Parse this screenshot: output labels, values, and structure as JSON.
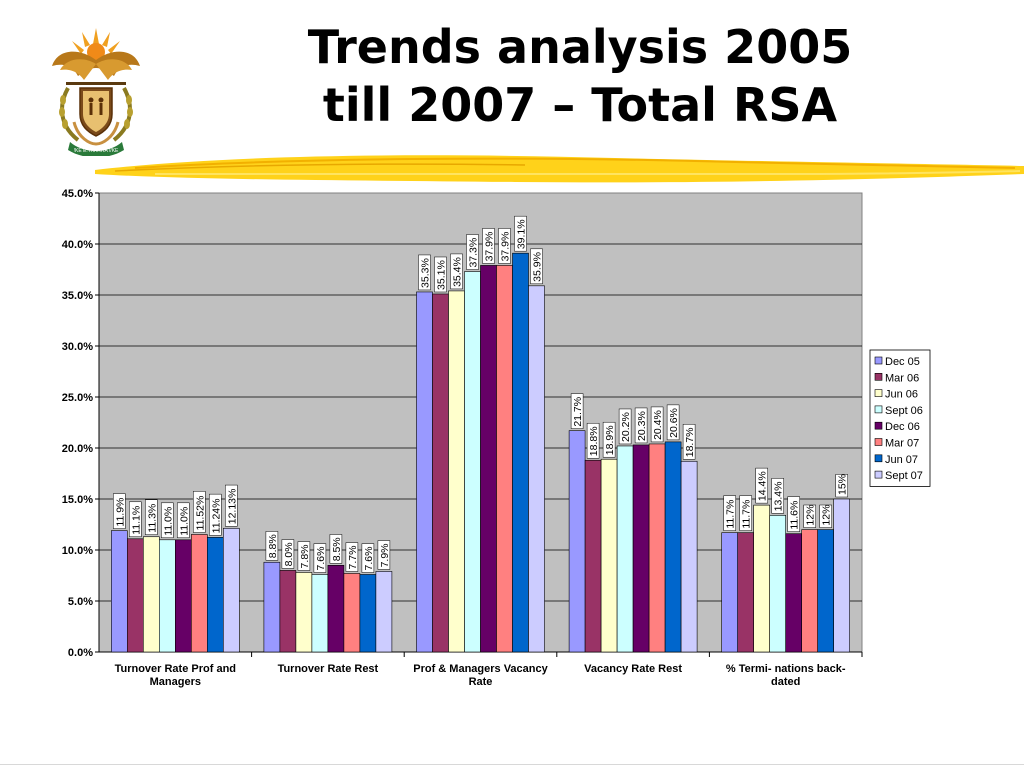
{
  "slide": {
    "title_line1": "Trends analysis 2005",
    "title_line2": "till 2007 – Total RSA",
    "emblem_icon": "south-africa-coat-of-arms",
    "emblem_motto": "!KE E: /XARRA //KE"
  },
  "chart_data": {
    "type": "bar",
    "title": "",
    "xlabel": "",
    "ylabel": "",
    "ylim": [
      0,
      45
    ],
    "y_ticks": [
      "0.0%",
      "5.0%",
      "10.0%",
      "15.0%",
      "20.0%",
      "25.0%",
      "30.0%",
      "35.0%",
      "40.0%",
      "45.0%"
    ],
    "grid": true,
    "legend_position": "right",
    "plot_background": "#c0c0c0",
    "categories": [
      [
        "Turnover Rate Prof and",
        "Managers"
      ],
      [
        "Turnover Rate Rest"
      ],
      [
        "Prof & Managers Vacancy",
        "Rate"
      ],
      [
        "Vacancy Rate Rest"
      ],
      [
        "% Termi- nations back-",
        "dated"
      ]
    ],
    "series": [
      {
        "name": "Dec 05",
        "color": "#9999ff",
        "values": [
          11.9,
          8.8,
          35.3,
          21.7,
          11.7
        ],
        "labels": [
          "11.9%",
          "8.8%",
          "35.3%",
          "21.7%",
          "11.7%"
        ]
      },
      {
        "name": "Mar 06",
        "color": "#993366",
        "values": [
          11.1,
          8.0,
          35.1,
          18.8,
          11.7
        ],
        "labels": [
          "11.1%",
          "8.0%",
          "35.1%",
          "18.8%",
          "11.7%"
        ]
      },
      {
        "name": "Jun 06",
        "color": "#ffffcc",
        "values": [
          11.3,
          7.8,
          35.4,
          18.9,
          14.4
        ],
        "labels": [
          "11.3%",
          "7.8%",
          "35.4%",
          "18.9%",
          "14.4%"
        ]
      },
      {
        "name": "Sept 06",
        "color": "#ccffff",
        "values": [
          11.0,
          7.6,
          37.3,
          20.2,
          13.4
        ],
        "labels": [
          "11.0%",
          "7.6%",
          "37.3%",
          "20.2%",
          "13.4%"
        ]
      },
      {
        "name": "Dec 06",
        "color": "#660066",
        "values": [
          11.0,
          8.5,
          37.9,
          20.3,
          11.6
        ],
        "labels": [
          "11.0%",
          "8.5%",
          "37.9%",
          "20.3%",
          "11.6%"
        ]
      },
      {
        "name": "Mar 07",
        "color": "#ff8080",
        "values": [
          11.52,
          7.7,
          37.9,
          20.4,
          12
        ],
        "labels": [
          "11.52%",
          "7.7%",
          "37.9%",
          "20.4%",
          "12%"
        ]
      },
      {
        "name": "Jun 07",
        "color": "#0066cc",
        "values": [
          11.24,
          7.6,
          39.1,
          20.6,
          12
        ],
        "labels": [
          "11.24%",
          "7.6%",
          "39.1%",
          "20.6%",
          "12%"
        ]
      },
      {
        "name": "Sept 07",
        "color": "#ccccff",
        "values": [
          12.13,
          7.9,
          35.9,
          18.7,
          15
        ],
        "labels": [
          "12.13%",
          "7.9%",
          "35.9%",
          "18.7%",
          "15%"
        ]
      }
    ]
  }
}
